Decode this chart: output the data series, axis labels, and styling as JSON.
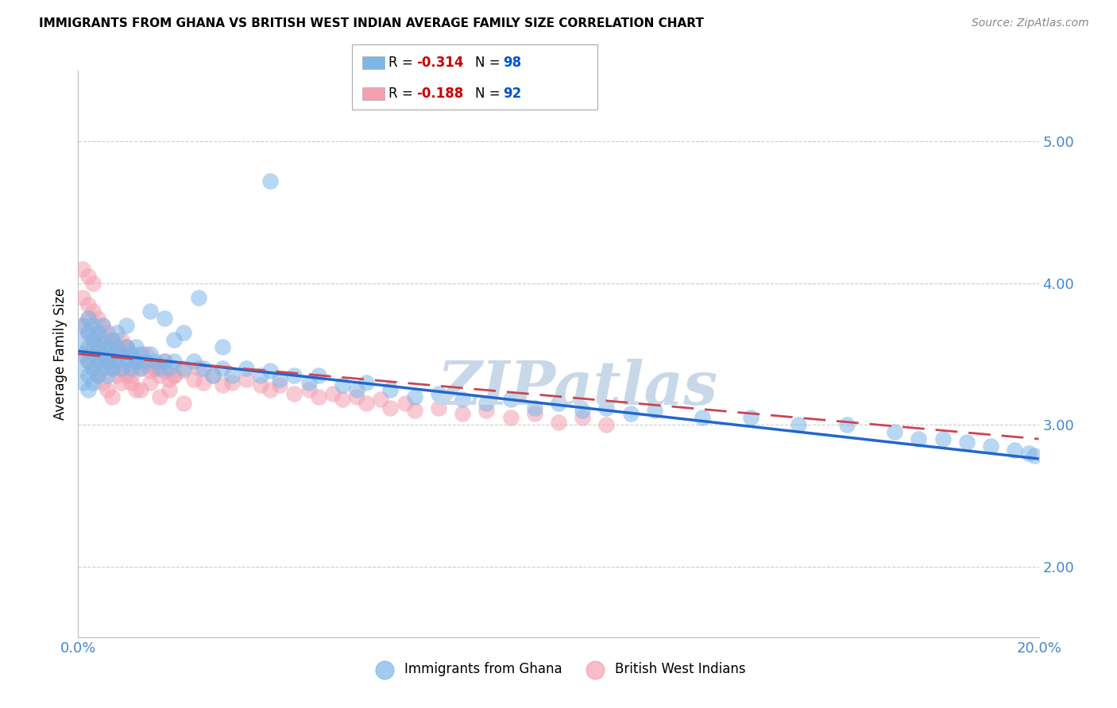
{
  "title": "IMMIGRANTS FROM GHANA VS BRITISH WEST INDIAN AVERAGE FAMILY SIZE CORRELATION CHART",
  "source": "Source: ZipAtlas.com",
  "ylabel": "Average Family Size",
  "xlim": [
    0.0,
    0.2
  ],
  "ylim": [
    1.5,
    5.5
  ],
  "yticks": [
    2.0,
    3.0,
    4.0,
    5.0
  ],
  "xticks": [
    0.0,
    0.05,
    0.1,
    0.15,
    0.2
  ],
  "series1_label": "Immigrants from Ghana",
  "series1_color": "#7EB6E8",
  "series1_line_color": "#2266CC",
  "series2_label": "British West Indians",
  "series2_color": "#F4A0B0",
  "series2_line_color": "#CC4455",
  "legend_R_color": "#CC0000",
  "legend_N_color": "#0055CC",
  "watermark": "ZIPatlas",
  "watermark_color": "#C8D8E8",
  "background_color": "#FFFFFF",
  "grid_color": "#CCCCCC",
  "axis_color": "#4488CC",
  "title_fontsize": 11,
  "ghana_x": [
    0.001,
    0.001,
    0.001,
    0.001,
    0.001,
    0.002,
    0.002,
    0.002,
    0.002,
    0.002,
    0.002,
    0.003,
    0.003,
    0.003,
    0.003,
    0.003,
    0.004,
    0.004,
    0.004,
    0.004,
    0.005,
    0.005,
    0.005,
    0.005,
    0.006,
    0.006,
    0.006,
    0.007,
    0.007,
    0.007,
    0.008,
    0.008,
    0.008,
    0.009,
    0.009,
    0.01,
    0.01,
    0.011,
    0.011,
    0.012,
    0.012,
    0.013,
    0.013,
    0.014,
    0.015,
    0.016,
    0.017,
    0.018,
    0.019,
    0.02,
    0.022,
    0.024,
    0.026,
    0.028,
    0.03,
    0.032,
    0.035,
    0.038,
    0.04,
    0.042,
    0.045,
    0.048,
    0.05,
    0.055,
    0.058,
    0.06,
    0.065,
    0.07,
    0.075,
    0.08,
    0.085,
    0.09,
    0.095,
    0.1,
    0.105,
    0.11,
    0.115,
    0.12,
    0.13,
    0.14,
    0.15,
    0.16,
    0.17,
    0.175,
    0.18,
    0.185,
    0.19,
    0.195,
    0.198,
    0.199,
    0.04,
    0.025,
    0.03,
    0.015,
    0.01,
    0.02,
    0.018,
    0.022
  ],
  "ghana_y": [
    3.5,
    3.6,
    3.3,
    3.7,
    3.4,
    3.55,
    3.45,
    3.65,
    3.35,
    3.75,
    3.25,
    3.5,
    3.6,
    3.4,
    3.7,
    3.3,
    3.55,
    3.45,
    3.65,
    3.35,
    3.5,
    3.4,
    3.6,
    3.7,
    3.45,
    3.55,
    3.35,
    3.6,
    3.4,
    3.5,
    3.55,
    3.45,
    3.65,
    3.5,
    3.4,
    3.55,
    3.45,
    3.5,
    3.4,
    3.55,
    3.45,
    3.5,
    3.4,
    3.45,
    3.5,
    3.45,
    3.4,
    3.45,
    3.4,
    3.45,
    3.4,
    3.45,
    3.4,
    3.35,
    3.4,
    3.35,
    3.4,
    3.35,
    3.38,
    3.32,
    3.35,
    3.3,
    3.35,
    3.28,
    3.25,
    3.3,
    3.25,
    3.2,
    3.22,
    3.18,
    3.15,
    3.18,
    3.12,
    3.15,
    3.1,
    3.12,
    3.08,
    3.1,
    3.05,
    3.05,
    3.0,
    3.0,
    2.95,
    2.9,
    2.9,
    2.88,
    2.85,
    2.82,
    2.8,
    2.78,
    4.72,
    3.9,
    3.55,
    3.8,
    3.7,
    3.6,
    3.75,
    3.65
  ],
  "bwi_x": [
    0.001,
    0.001,
    0.001,
    0.001,
    0.002,
    0.002,
    0.002,
    0.002,
    0.003,
    0.003,
    0.003,
    0.003,
    0.004,
    0.004,
    0.004,
    0.005,
    0.005,
    0.005,
    0.006,
    0.006,
    0.006,
    0.007,
    0.007,
    0.007,
    0.008,
    0.008,
    0.009,
    0.009,
    0.01,
    0.01,
    0.011,
    0.011,
    0.012,
    0.012,
    0.013,
    0.014,
    0.015,
    0.016,
    0.017,
    0.018,
    0.019,
    0.02,
    0.022,
    0.024,
    0.026,
    0.028,
    0.03,
    0.032,
    0.035,
    0.038,
    0.04,
    0.042,
    0.045,
    0.048,
    0.05,
    0.053,
    0.055,
    0.058,
    0.06,
    0.063,
    0.065,
    0.068,
    0.07,
    0.075,
    0.08,
    0.085,
    0.09,
    0.095,
    0.1,
    0.105,
    0.11,
    0.002,
    0.003,
    0.004,
    0.005,
    0.006,
    0.007,
    0.008,
    0.009,
    0.01,
    0.011,
    0.012,
    0.013,
    0.014,
    0.015,
    0.016,
    0.017,
    0.018,
    0.019,
    0.02,
    0.022,
    0.025
  ],
  "bwi_y": [
    3.9,
    4.1,
    3.7,
    3.5,
    3.85,
    4.05,
    3.65,
    3.45,
    3.8,
    4.0,
    3.6,
    3.4,
    3.75,
    3.55,
    3.35,
    3.7,
    3.5,
    3.3,
    3.65,
    3.45,
    3.25,
    3.6,
    3.4,
    3.2,
    3.55,
    3.35,
    3.6,
    3.4,
    3.55,
    3.35,
    3.5,
    3.3,
    3.45,
    3.25,
    3.4,
    3.42,
    3.38,
    3.4,
    3.35,
    3.38,
    3.32,
    3.35,
    3.38,
    3.32,
    3.3,
    3.35,
    3.28,
    3.3,
    3.32,
    3.28,
    3.25,
    3.28,
    3.22,
    3.25,
    3.2,
    3.22,
    3.18,
    3.2,
    3.15,
    3.18,
    3.12,
    3.15,
    3.1,
    3.12,
    3.08,
    3.1,
    3.05,
    3.08,
    3.02,
    3.05,
    3.0,
    3.75,
    3.55,
    3.65,
    3.45,
    3.6,
    3.4,
    3.5,
    3.3,
    3.55,
    3.35,
    3.45,
    3.25,
    3.5,
    3.3,
    3.4,
    3.2,
    3.45,
    3.25,
    3.35,
    3.15,
    3.4
  ],
  "ghana_trend_x0": 0.0,
  "ghana_trend_y0": 3.52,
  "ghana_trend_x1": 0.2,
  "ghana_trend_y1": 2.76,
  "bwi_trend_x0": 0.0,
  "bwi_trend_y0": 3.5,
  "bwi_trend_x1": 0.2,
  "bwi_trend_y1": 2.9
}
